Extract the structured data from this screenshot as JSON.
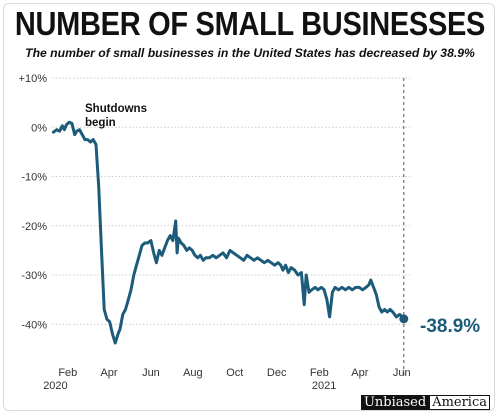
{
  "title": "NUMBER OF SMALL BUSINESSES",
  "subtitle": "The number of small businesses in the United States has decreased by 38.9%",
  "brand": {
    "part1": "Unbiased",
    "part2": "America"
  },
  "colors": {
    "line": "#1c5b7a",
    "grid": "#cccccc",
    "text": "#333333"
  },
  "chart_data": {
    "type": "line",
    "title": "NUMBER OF SMALL BUSINESSES",
    "subtitle": "The number of small businesses in the United States has decreased by 38.9%",
    "xlabel": "",
    "ylabel": "",
    "ylim": [
      -44,
      10
    ],
    "yticks": [
      {
        "value": 10,
        "label": "+10%"
      },
      {
        "value": 0,
        "label": "0%"
      },
      {
        "value": -10,
        "label": "-10%"
      },
      {
        "value": -20,
        "label": "-20%"
      },
      {
        "value": -30,
        "label": "-30%"
      },
      {
        "value": -40,
        "label": "-40%"
      }
    ],
    "xticks": [
      {
        "label": "Feb",
        "date": "2020-02-01"
      },
      {
        "label": "Apr",
        "date": "2020-04-01"
      },
      {
        "label": "Jun",
        "date": "2020-06-01"
      },
      {
        "label": "Aug",
        "date": "2020-08-01"
      },
      {
        "label": "Oct",
        "date": "2020-10-01"
      },
      {
        "label": "Dec",
        "date": "2020-12-01"
      },
      {
        "label": "Feb",
        "date": "2021-02-01"
      },
      {
        "label": "Apr",
        "date": "2021-04-01"
      },
      {
        "label": "Jun",
        "date": "2021-06-01"
      }
    ],
    "year_labels": [
      {
        "label": "2020",
        "date": "2020-01-14"
      },
      {
        "label": "2021",
        "date": "2021-02-08"
      }
    ],
    "xlim": [
      "2020-01-09",
      "2021-06-13"
    ],
    "grid": "horizontal",
    "annotation": {
      "text_lines": [
        "Shutdowns",
        "begin"
      ]
    },
    "end_label": "-38.9%",
    "marker_date": "2021-06-04",
    "series": [
      {
        "x": [
          "2020-01-11",
          "2020-01-16",
          "2020-01-20",
          "2020-01-24",
          "2020-01-27",
          "2020-01-30",
          "2020-02-03",
          "2020-02-07",
          "2020-02-11",
          "2020-02-14",
          "2020-02-18",
          "2020-02-22",
          "2020-02-26",
          "2020-03-01",
          "2020-03-05",
          "2020-03-09",
          "2020-03-13",
          "2020-03-17",
          "2020-03-21",
          "2020-03-25",
          "2020-03-29",
          "2020-04-02",
          "2020-04-06",
          "2020-04-10",
          "2020-04-14",
          "2020-04-17",
          "2020-04-21",
          "2020-04-25",
          "2020-04-29",
          "2020-05-03",
          "2020-05-07",
          "2020-05-11",
          "2020-05-15",
          "2020-05-19",
          "2020-05-23",
          "2020-05-27",
          "2020-06-01",
          "2020-06-05",
          "2020-06-09",
          "2020-06-13",
          "2020-06-17",
          "2020-06-21",
          "2020-06-25",
          "2020-06-29",
          "2020-07-03",
          "2020-07-07",
          "2020-07-09",
          "2020-07-11",
          "2020-07-15",
          "2020-07-19",
          "2020-07-23",
          "2020-07-27",
          "2020-07-31",
          "2020-08-04",
          "2020-08-08",
          "2020-08-12",
          "2020-08-16",
          "2020-08-20",
          "2020-08-25",
          "2020-08-30",
          "2020-09-04",
          "2020-09-09",
          "2020-09-14",
          "2020-09-19",
          "2020-09-24",
          "2020-09-29",
          "2020-10-04",
          "2020-10-09",
          "2020-10-14",
          "2020-10-19",
          "2020-10-24",
          "2020-10-29",
          "2020-11-03",
          "2020-11-08",
          "2020-11-13",
          "2020-11-18",
          "2020-11-23",
          "2020-11-28",
          "2020-12-03",
          "2020-12-07",
          "2020-12-10",
          "2020-12-14",
          "2020-12-18",
          "2020-12-22",
          "2020-12-27",
          "2021-01-01",
          "2021-01-06",
          "2021-01-10",
          "2021-01-13",
          "2021-01-17",
          "2021-01-21",
          "2021-01-26",
          "2021-01-30",
          "2021-02-04",
          "2021-02-08",
          "2021-02-12",
          "2021-02-16",
          "2021-02-20",
          "2021-02-24",
          "2021-03-01",
          "2021-03-06",
          "2021-03-11",
          "2021-03-16",
          "2021-03-21",
          "2021-03-26",
          "2021-03-31",
          "2021-04-05",
          "2021-04-10",
          "2021-04-14",
          "2021-04-17",
          "2021-04-21",
          "2021-04-25",
          "2021-04-29",
          "2021-05-03",
          "2021-05-07",
          "2021-05-11",
          "2021-05-15",
          "2021-05-19",
          "2021-05-24",
          "2021-05-29",
          "2021-06-04"
        ],
        "y": [
          -1,
          -0.5,
          -0.8,
          0.3,
          -0.5,
          0.5,
          1,
          0.8,
          -1.5,
          -0.8,
          -0.5,
          -1.5,
          -2.5,
          -2.5,
          -3,
          -2.5,
          -3.5,
          -12,
          -25,
          -37,
          -39,
          -39.5,
          -42,
          -43.8,
          -42,
          -41,
          -38,
          -37,
          -35,
          -33,
          -30,
          -28,
          -26,
          -24,
          -23.5,
          -23.5,
          -23,
          -25.5,
          -27.5,
          -25,
          -26,
          -24.5,
          -23,
          -22,
          -23,
          -19,
          -25.5,
          -22.5,
          -23.5,
          -24,
          -25,
          -24.5,
          -25,
          -26,
          -26.5,
          -26,
          -27,
          -26.5,
          -26.5,
          -26,
          -26.5,
          -26,
          -25.5,
          -26.5,
          -25,
          -25.5,
          -26,
          -26.5,
          -27,
          -26,
          -26.5,
          -27,
          -26.5,
          -27,
          -27.5,
          -27,
          -27.5,
          -28,
          -27.5,
          -28,
          -29,
          -28,
          -29.5,
          -28.5,
          -29,
          -30,
          -29.5,
          -36,
          -30,
          -33.5,
          -33,
          -32.5,
          -33,
          -32.5,
          -33,
          -35,
          -38.5,
          -33.5,
          -32.5,
          -33,
          -32.5,
          -33,
          -32.5,
          -33,
          -32.5,
          -32.5,
          -33,
          -32.5,
          -32,
          -31,
          -32.5,
          -34,
          -36.5,
          -37.5,
          -37,
          -37.5,
          -37,
          -37.5,
          -38.5,
          -38,
          -38.9
        ]
      }
    ]
  }
}
